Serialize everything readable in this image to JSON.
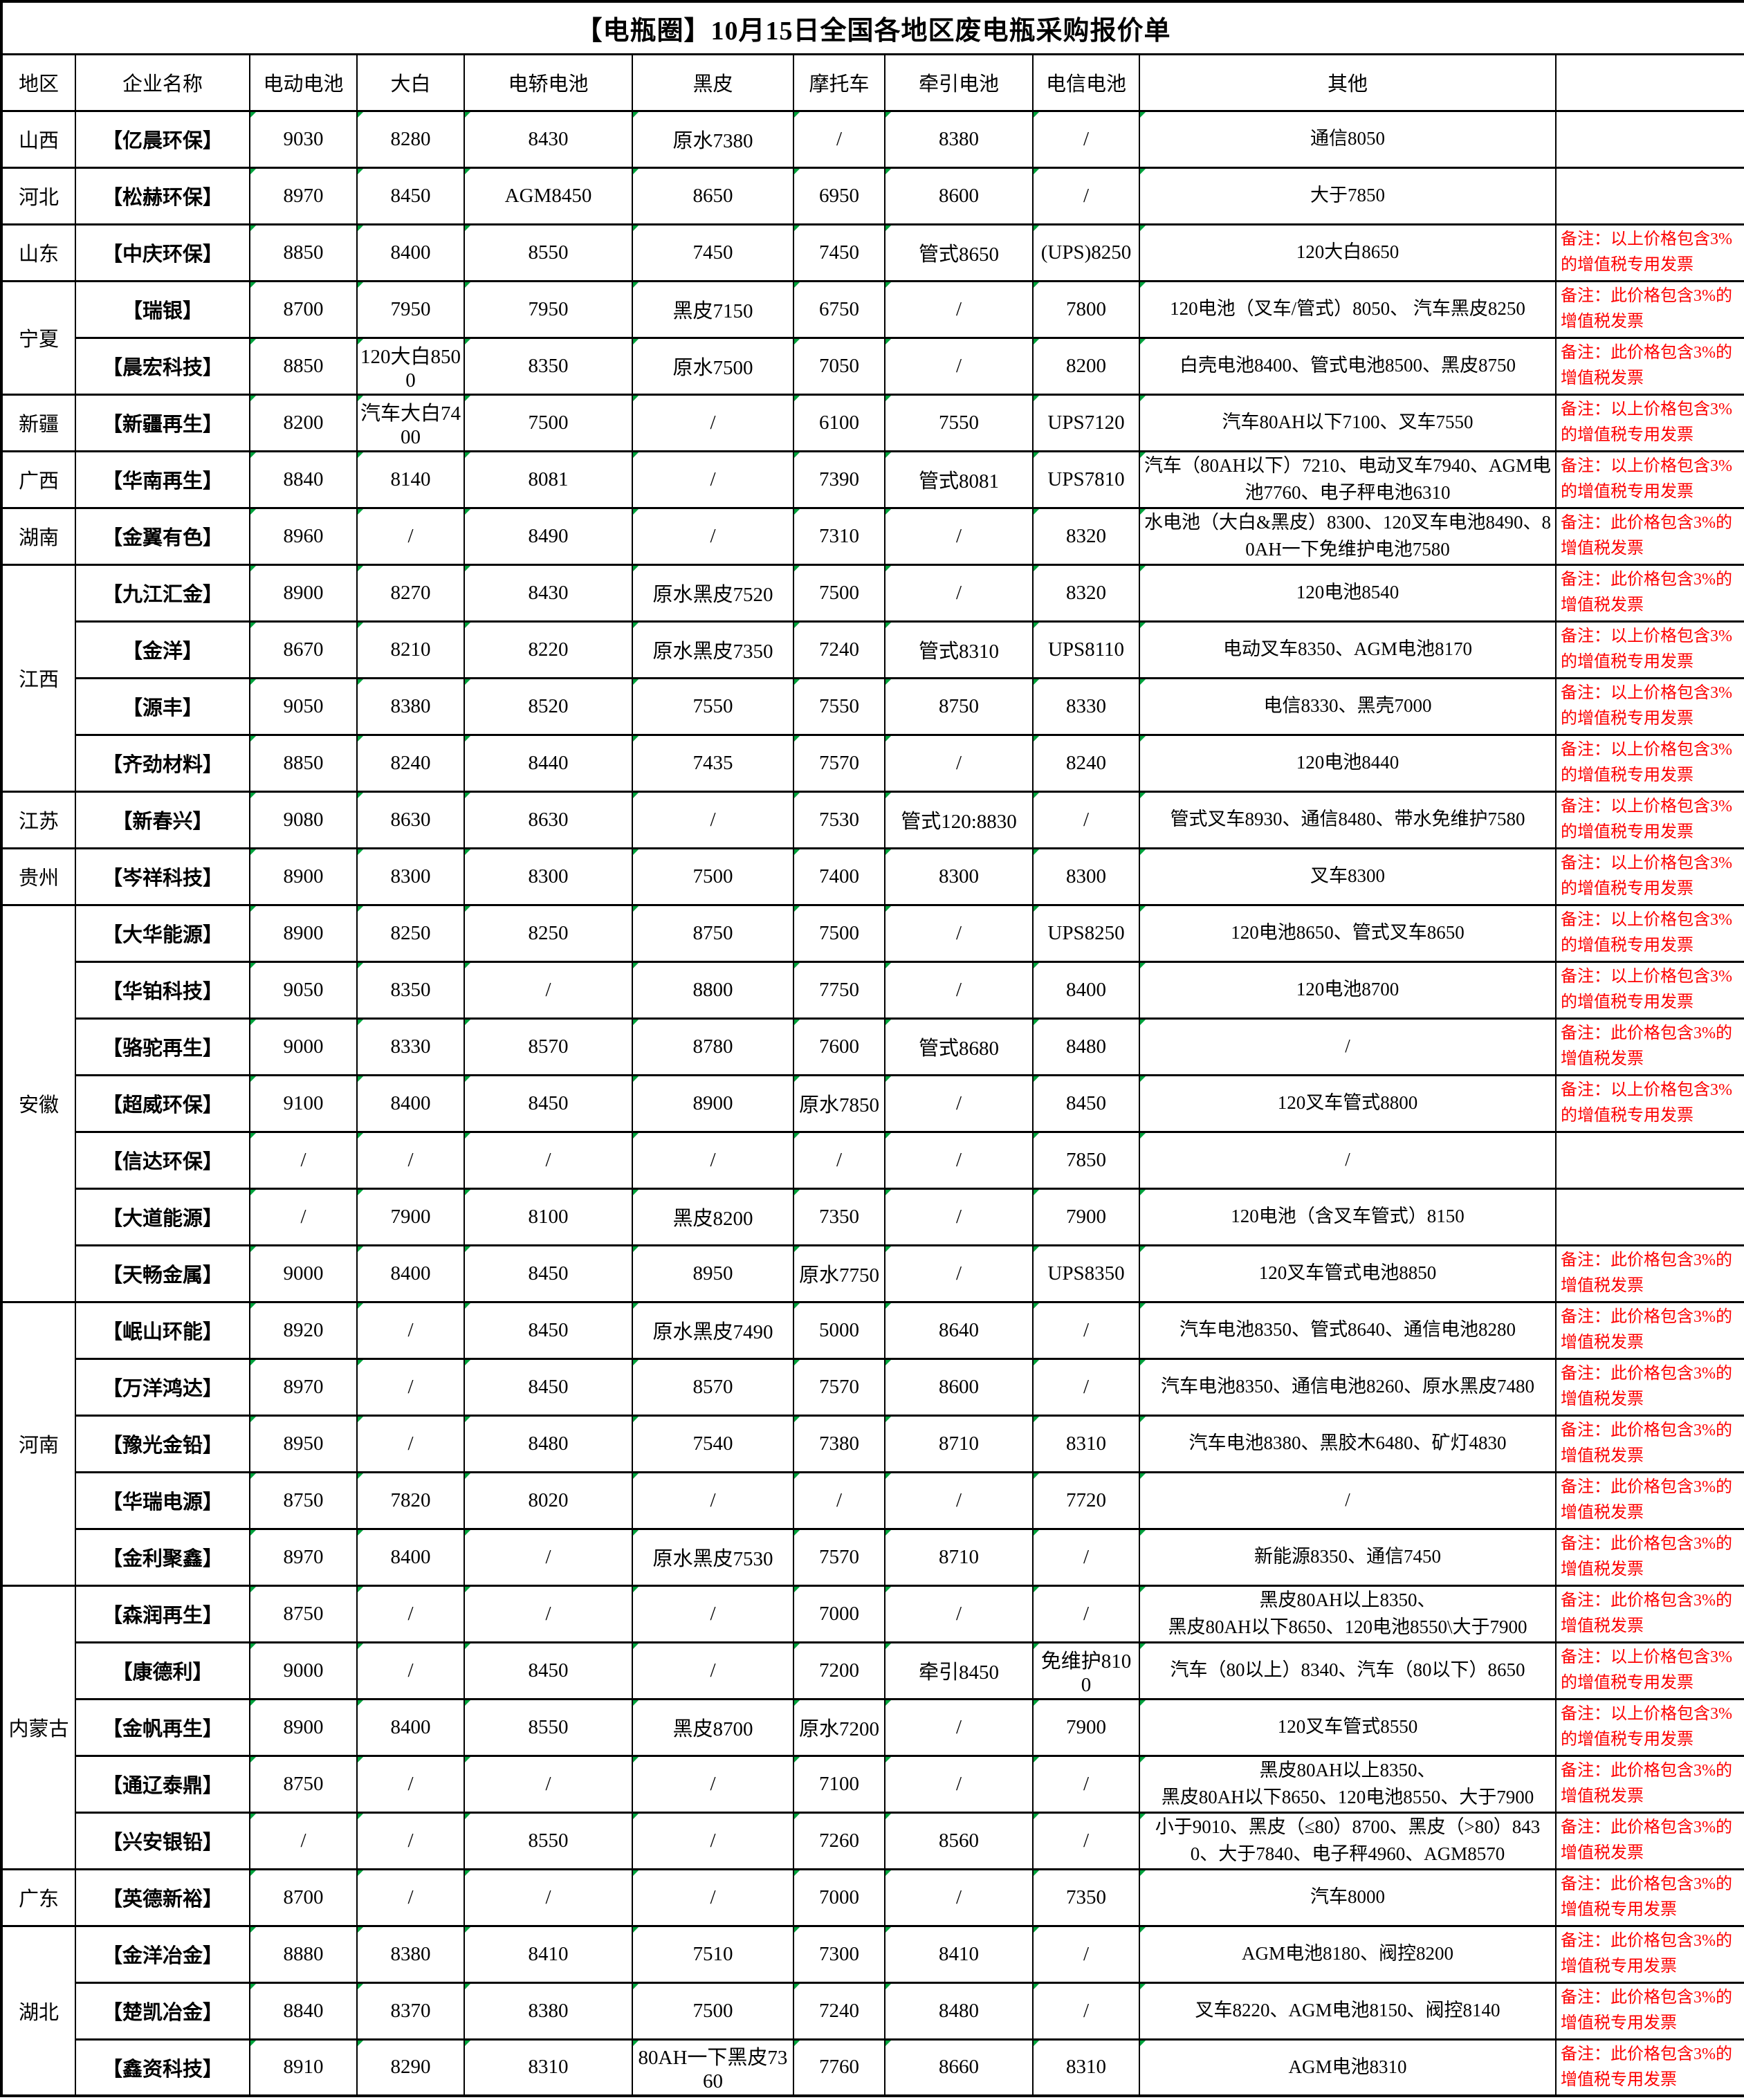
{
  "title": "【电瓶圈】10月15日全国各地区废电瓶采购报价单",
  "columns": [
    "地区",
    "企业名称",
    "电动电池",
    "大白",
    "电轿电池",
    "黑皮",
    "摩托车",
    "牵引电池",
    "电信电池",
    "其他",
    ""
  ],
  "remarks": {
    "A": "备注：以上价格包含3%的增值税专用发票",
    "B": "备注：此价格包含3%的增值税发票",
    "C": "备注：此价格包含3%的增值税专用发票"
  },
  "rows": [
    {
      "region": "山西",
      "region_span": 1,
      "company": "【亿晨环保】",
      "values": [
        "9030",
        "8280",
        "8430",
        "原水7380",
        "/",
        "8380",
        "/"
      ],
      "other": "通信8050",
      "remark": ""
    },
    {
      "region": "河北",
      "region_span": 1,
      "company": "【松赫环保】",
      "values": [
        "8970",
        "8450",
        "AGM8450",
        "8650",
        "6950",
        "8600",
        "/"
      ],
      "other": "大于7850",
      "remark": ""
    },
    {
      "region": "山东",
      "region_span": 1,
      "company": "【中庆环保】",
      "values": [
        "8850",
        "8400",
        "8550",
        "7450",
        "7450",
        "管式8650",
        "(UPS)8250"
      ],
      "other": "120大白8650",
      "remark": "A"
    },
    {
      "region": "宁夏",
      "region_span": 2,
      "company": "【瑞银】",
      "values": [
        "8700",
        "7950",
        "7950",
        "黑皮7150",
        "6750",
        "/",
        "7800"
      ],
      "other": "120电池（叉车/管式）8050、 汽车黑皮8250",
      "remark": "B"
    },
    {
      "region": null,
      "company": "【晨宏科技】",
      "values": [
        "8850",
        "120大白8500",
        "8350",
        "原水7500",
        "7050",
        "/",
        "8200"
      ],
      "other": "白壳电池8400、管式电池8500、黑皮8750",
      "remark": "B"
    },
    {
      "region": "新疆",
      "region_span": 1,
      "company": "【新疆再生】",
      "values": [
        "8200",
        "汽车大白7400",
        "7500",
        "/",
        "6100",
        "7550",
        "UPS7120"
      ],
      "other": "汽车80AH以下7100、叉车7550",
      "remark": "A"
    },
    {
      "region": "广西",
      "region_span": 1,
      "company": "【华南再生】",
      "values": [
        "8840",
        "8140",
        "8081",
        "/",
        "7390",
        "管式8081",
        "UPS7810"
      ],
      "other": "汽车（80AH以下）7210、电动叉车7940、AGM电池7760、电子秤电池6310",
      "remark": "A"
    },
    {
      "region": "湖南",
      "region_span": 1,
      "company": "【金翼有色】",
      "values": [
        "8960",
        "/",
        "8490",
        "/",
        "7310",
        "/",
        "8320"
      ],
      "other": "水电池（大白&黑皮）8300、120叉车电池8490、80AH一下免维护电池7580",
      "remark": "B"
    },
    {
      "region": "江西",
      "region_span": 4,
      "company": "【九江汇金】",
      "values": [
        "8900",
        "8270",
        "8430",
        "原水黑皮7520",
        "7500",
        "/",
        "8320"
      ],
      "other": "120电池8540",
      "remark": "B"
    },
    {
      "region": null,
      "company": "【金洋】",
      "values": [
        "8670",
        "8210",
        "8220",
        "原水黑皮7350",
        "7240",
        "管式8310",
        "UPS8110"
      ],
      "other": "电动叉车8350、AGM电池8170",
      "remark": "A"
    },
    {
      "region": null,
      "company": "【源丰】",
      "values": [
        "9050",
        "8380",
        "8520",
        "7550",
        "7550",
        "8750",
        "8330"
      ],
      "other": "电信8330、黑壳7000",
      "remark": "A"
    },
    {
      "region": null,
      "company": "【齐劲材料】",
      "values": [
        "8850",
        "8240",
        "8440",
        "7435",
        "7570",
        "/",
        "8240"
      ],
      "other": "120电池8440",
      "remark": "A"
    },
    {
      "region": "江苏",
      "region_span": 1,
      "company": "【新春兴】",
      "values": [
        "9080",
        "8630",
        "8630",
        "/",
        "7530",
        "管式120:8830",
        "/"
      ],
      "other": "管式叉车8930、通信8480、带水免维护7580",
      "remark": "A"
    },
    {
      "region": "贵州",
      "region_span": 1,
      "company": "【岑祥科技】",
      "values": [
        "8900",
        "8300",
        "8300",
        "7500",
        "7400",
        "8300",
        "8300"
      ],
      "other": "叉车8300",
      "remark": "A"
    },
    {
      "region": "安徽",
      "region_span": 7,
      "company": "【大华能源】",
      "values": [
        "8900",
        "8250",
        "8250",
        "8750",
        "7500",
        "/",
        "UPS8250"
      ],
      "other": "120电池8650、管式叉车8650",
      "remark": "A"
    },
    {
      "region": null,
      "company": "【华铂科技】",
      "values": [
        "9050",
        "8350",
        "/",
        "8800",
        "7750",
        "/",
        "8400"
      ],
      "other": "120电池8700",
      "remark": "A"
    },
    {
      "region": null,
      "company": "【骆驼再生】",
      "values": [
        "9000",
        "8330",
        "8570",
        "8780",
        "7600",
        "管式8680",
        "8480"
      ],
      "other": "/",
      "remark": "B"
    },
    {
      "region": null,
      "company": "【超威环保】",
      "values": [
        "9100",
        "8400",
        "8450",
        "8900",
        "原水7850",
        "/",
        "8450"
      ],
      "other": "120叉车管式8800",
      "remark": "A"
    },
    {
      "region": null,
      "company": "【信达环保】",
      "values": [
        "/",
        "/",
        "/",
        "/",
        "/",
        "/",
        "7850"
      ],
      "other": "/",
      "remark": ""
    },
    {
      "region": null,
      "company": "【大道能源】",
      "values": [
        "/",
        "7900",
        "8100",
        "黑皮8200",
        "7350",
        "/",
        "7900"
      ],
      "other": "120电池（含叉车管式）8150",
      "remark": ""
    },
    {
      "region": null,
      "company": "【天畅金属】",
      "values": [
        "9000",
        "8400",
        "8450",
        "8950",
        "原水7750",
        "/",
        "UPS8350"
      ],
      "other": "120叉车管式电池8850",
      "remark": "B"
    },
    {
      "region": "河南",
      "region_span": 5,
      "company": "【岷山环能】",
      "values": [
        "8920",
        "/",
        "8450",
        "原水黑皮7490",
        "5000",
        "8640",
        "/"
      ],
      "other": "汽车电池8350、管式8640、通信电池8280",
      "remark": "B"
    },
    {
      "region": null,
      "company": "【万洋鸿达】",
      "values": [
        "8970",
        "/",
        "8450",
        "8570",
        "7570",
        "8600",
        "/"
      ],
      "other": "汽车电池8350、通信电池8260、原水黑皮7480",
      "remark": "B"
    },
    {
      "region": null,
      "company": "【豫光金铅】",
      "values": [
        "8950",
        "/",
        "8480",
        "7540",
        "7380",
        "8710",
        "8310"
      ],
      "other": "汽车电池8380、黑胶木6480、矿灯4830",
      "remark": "B"
    },
    {
      "region": null,
      "company": "【华瑞电源】",
      "values": [
        "8750",
        "7820",
        "8020",
        "/",
        "/",
        "/",
        "7720"
      ],
      "other": "/",
      "remark": "B"
    },
    {
      "region": null,
      "company": "【金利聚鑫】",
      "values": [
        "8970",
        "8400",
        "/",
        "原水黑皮7530",
        "7570",
        "8710",
        "/"
      ],
      "other": "新能源8350、通信7450",
      "remark": "B"
    },
    {
      "region": "内蒙古",
      "region_span": 5,
      "company": "【森润再生】",
      "values": [
        "8750",
        "/",
        "/",
        "/",
        "7000",
        "/",
        "/"
      ],
      "other": "黑皮80AH以上8350、\n黑皮80AH以下8650、120电池8550\\大于7900",
      "remark": "B"
    },
    {
      "region": null,
      "company": "【康德利】",
      "values": [
        "9000",
        "/",
        "8450",
        "/",
        "7200",
        "牵引8450",
        "免维护8100"
      ],
      "other": "汽车（80以上）8340、汽车（80以下）8650",
      "remark": "A"
    },
    {
      "region": null,
      "company": "【金帆再生】",
      "values": [
        "8900",
        "8400",
        "8550",
        "黑皮8700",
        "原水7200",
        "/",
        "7900"
      ],
      "other": "120叉车管式8550",
      "remark": "A"
    },
    {
      "region": null,
      "company": "【通辽泰鼎】",
      "values": [
        "8750",
        "/",
        "/",
        "/",
        "7100",
        "/",
        "/"
      ],
      "other": "黑皮80AH以上8350、\n黑皮80AH以下8650、120电池8550、大于7900",
      "remark": "B"
    },
    {
      "region": null,
      "company": "【兴安银铅】",
      "values": [
        "/",
        "/",
        "8550",
        "/",
        "7260",
        "8560",
        "/"
      ],
      "other": "小于9010、黑皮（≤80）8700、黑皮（>80）8430、大于7840、电子秤4960、AGM8570",
      "remark": "B"
    },
    {
      "region": "广东",
      "region_span": 1,
      "company": "【英德新裕】",
      "values": [
        "8700",
        "/",
        "/",
        "/",
        "7000",
        "/",
        "7350"
      ],
      "other": "汽车8000",
      "remark": "C"
    },
    {
      "region": "湖北",
      "region_span": 3,
      "company": "【金洋冶金】",
      "values": [
        "8880",
        "8380",
        "8410",
        "7510",
        "7300",
        "8410",
        "/"
      ],
      "other": "AGM电池8180、阀控8200",
      "remark": "C"
    },
    {
      "region": null,
      "company": "【楚凯冶金】",
      "values": [
        "8840",
        "8370",
        "8380",
        "7500",
        "7240",
        "8480",
        "/"
      ],
      "other": "叉车8220、AGM电池8150、阀控8140",
      "remark": "C"
    },
    {
      "region": null,
      "company": "【鑫资科技】",
      "values": [
        "8910",
        "8290",
        "8310",
        "80AH一下黑皮7360",
        "7760",
        "8660",
        "8310"
      ],
      "other": "AGM电池8310",
      "remark": "C"
    }
  ]
}
